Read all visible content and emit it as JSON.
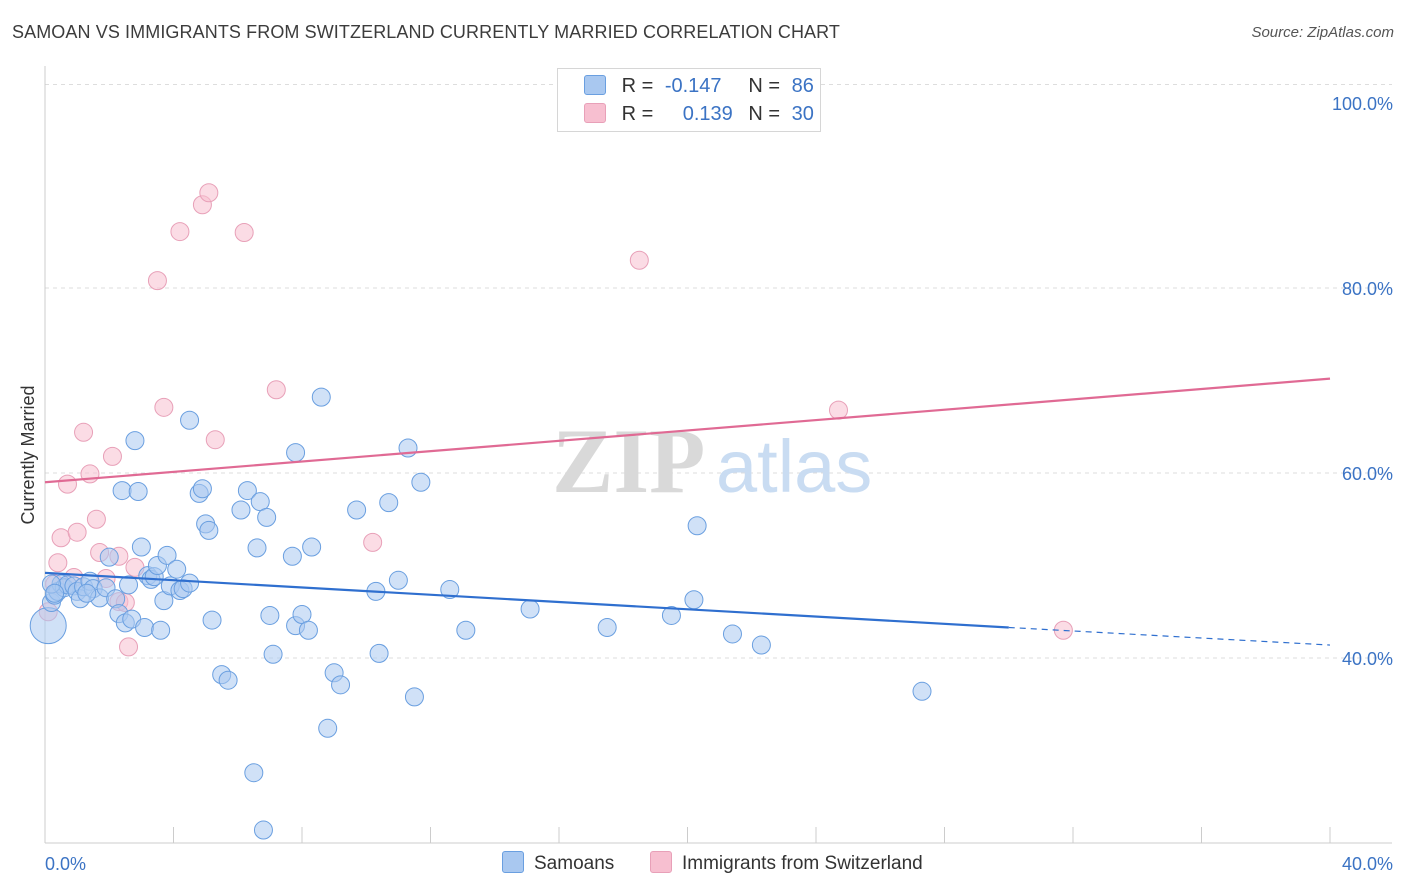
{
  "header": {
    "title": "SAMOAN VS IMMIGRANTS FROM SWITZERLAND CURRENTLY MARRIED CORRELATION CHART",
    "source": "Source: ZipAtlas.com"
  },
  "legend": {
    "rows": [
      {
        "r_label": "R =",
        "r_value": "-0.147",
        "n_label": "N =",
        "n_value": "86"
      },
      {
        "r_label": "R =",
        "r_value": "0.139",
        "n_label": "N =",
        "n_value": "30"
      }
    ],
    "bottom": [
      "Samoans",
      "Immigrants from Switzerland"
    ]
  },
  "watermark": {
    "zip": "ZIP",
    "atlas": "atlas"
  },
  "colors": {
    "blue_fill": "#a9c8f0",
    "blue_stroke": "#6a9fe0",
    "blue_line": "#2f6fcf",
    "pink_fill": "#f7bfd0",
    "pink_stroke": "#e8a0b8",
    "pink_line": "#e06a94",
    "tick_label": "#3b73c4",
    "grid": "#dddddd"
  },
  "chart_data": {
    "type": "scatter",
    "title": "SAMOAN VS IMMIGRANTS FROM SWITZERLAND CURRENTLY MARRIED CORRELATION CHART",
    "xlabel": "",
    "ylabel": "Currently Married",
    "xlim": [
      0,
      40
    ],
    "ylim": [
      20,
      104
    ],
    "x_tick_labels": [
      {
        "x": 0,
        "label": "0.0%"
      },
      {
        "x": 40,
        "label": "40.0%"
      }
    ],
    "y_tick_labels": [
      {
        "y": 40,
        "label": "40.0%"
      },
      {
        "y": 60,
        "label": "60.0%"
      },
      {
        "y": 80,
        "label": "80.0%"
      },
      {
        "y": 100,
        "label": "100.0%"
      }
    ],
    "y_gridlines": [
      40,
      60,
      80,
      102
    ],
    "grid": true,
    "legend_position": "top-center",
    "series": [
      {
        "name": "Samoans",
        "r": -0.147,
        "n": 86,
        "trend": {
          "x0": 0,
          "y0": 49.2,
          "x1": 30,
          "y1": 43.3,
          "dash_to_x": 40,
          "dash_to_y": 41.4
        },
        "points": [
          [
            0.1,
            43.5
          ],
          [
            0.2,
            46.0
          ],
          [
            0.3,
            46.8
          ],
          [
            0.4,
            47.2
          ],
          [
            0.5,
            48.0
          ],
          [
            0.6,
            47.6
          ],
          [
            0.7,
            47.9
          ],
          [
            0.9,
            47.8
          ],
          [
            1.0,
            47.2
          ],
          [
            1.1,
            46.4
          ],
          [
            1.2,
            47.7
          ],
          [
            1.4,
            48.3
          ],
          [
            1.5,
            47.5
          ],
          [
            1.7,
            46.5
          ],
          [
            1.9,
            47.6
          ],
          [
            2.0,
            50.9
          ],
          [
            2.2,
            46.4
          ],
          [
            2.3,
            44.8
          ],
          [
            2.4,
            58.1
          ],
          [
            2.5,
            43.8
          ],
          [
            2.6,
            47.9
          ],
          [
            2.7,
            44.2
          ],
          [
            2.8,
            63.5
          ],
          [
            2.9,
            58.0
          ],
          [
            3.0,
            52.0
          ],
          [
            3.1,
            43.3
          ],
          [
            3.2,
            48.9
          ],
          [
            3.3,
            48.5
          ],
          [
            3.4,
            48.8
          ],
          [
            3.5,
            50.0
          ],
          [
            3.6,
            43.0
          ],
          [
            3.7,
            46.2
          ],
          [
            3.8,
            51.1
          ],
          [
            3.9,
            47.8
          ],
          [
            4.1,
            49.6
          ],
          [
            4.2,
            47.3
          ],
          [
            4.3,
            47.5
          ],
          [
            4.5,
            48.1
          ],
          [
            4.5,
            65.7
          ],
          [
            4.8,
            57.8
          ],
          [
            4.9,
            58.3
          ],
          [
            5.0,
            54.5
          ],
          [
            5.1,
            53.8
          ],
          [
            5.2,
            44.1
          ],
          [
            5.5,
            38.2
          ],
          [
            5.7,
            37.6
          ],
          [
            6.1,
            56.0
          ],
          [
            6.3,
            58.1
          ],
          [
            6.5,
            27.6
          ],
          [
            6.6,
            51.9
          ],
          [
            6.7,
            56.9
          ],
          [
            6.8,
            21.4
          ],
          [
            6.9,
            55.2
          ],
          [
            7.0,
            44.6
          ],
          [
            7.1,
            40.4
          ],
          [
            7.7,
            51.0
          ],
          [
            7.8,
            62.2
          ],
          [
            7.8,
            43.5
          ],
          [
            8.0,
            44.7
          ],
          [
            8.2,
            43.0
          ],
          [
            8.3,
            52.0
          ],
          [
            8.6,
            68.2
          ],
          [
            8.8,
            32.4
          ],
          [
            9.0,
            38.4
          ],
          [
            9.2,
            37.1
          ],
          [
            9.7,
            56.0
          ],
          [
            10.3,
            47.2
          ],
          [
            10.4,
            40.5
          ],
          [
            10.7,
            56.8
          ],
          [
            11.0,
            48.4
          ],
          [
            11.3,
            62.7
          ],
          [
            11.5,
            35.8
          ],
          [
            11.7,
            59.0
          ],
          [
            12.6,
            47.4
          ],
          [
            13.1,
            43.0
          ],
          [
            15.1,
            45.3
          ],
          [
            17.5,
            43.3
          ],
          [
            19.5,
            44.6
          ],
          [
            20.2,
            46.3
          ],
          [
            20.3,
            54.3
          ],
          [
            21.4,
            42.6
          ],
          [
            22.3,
            41.4
          ],
          [
            27.3,
            36.4
          ],
          [
            0.2,
            48.0
          ],
          [
            0.3,
            47.0
          ],
          [
            1.3,
            47.0
          ]
        ]
      },
      {
        "name": "Immigrants from Switzerland",
        "r": 0.139,
        "n": 30,
        "trend": {
          "x0": 0,
          "y0": 59.0,
          "x1": 40,
          "y1": 70.2
        },
        "points": [
          [
            0.1,
            45.0
          ],
          [
            0.3,
            48.0
          ],
          [
            0.4,
            50.3
          ],
          [
            0.5,
            53.0
          ],
          [
            0.7,
            58.8
          ],
          [
            0.9,
            48.7
          ],
          [
            1.0,
            53.6
          ],
          [
            1.2,
            64.4
          ],
          [
            1.4,
            59.9
          ],
          [
            1.6,
            55.0
          ],
          [
            1.7,
            51.4
          ],
          [
            1.9,
            48.6
          ],
          [
            2.1,
            61.8
          ],
          [
            2.3,
            51.0
          ],
          [
            2.3,
            46.1
          ],
          [
            2.5,
            46.0
          ],
          [
            2.6,
            41.2
          ],
          [
            2.8,
            49.8
          ],
          [
            3.5,
            80.8
          ],
          [
            3.7,
            67.1
          ],
          [
            4.2,
            86.1
          ],
          [
            4.9,
            89.0
          ],
          [
            5.1,
            90.3
          ],
          [
            5.3,
            63.6
          ],
          [
            6.2,
            86.0
          ],
          [
            7.2,
            69.0
          ],
          [
            10.2,
            52.5
          ],
          [
            18.5,
            83.0
          ],
          [
            24.7,
            66.8
          ],
          [
            31.7,
            43.0
          ]
        ]
      }
    ]
  }
}
